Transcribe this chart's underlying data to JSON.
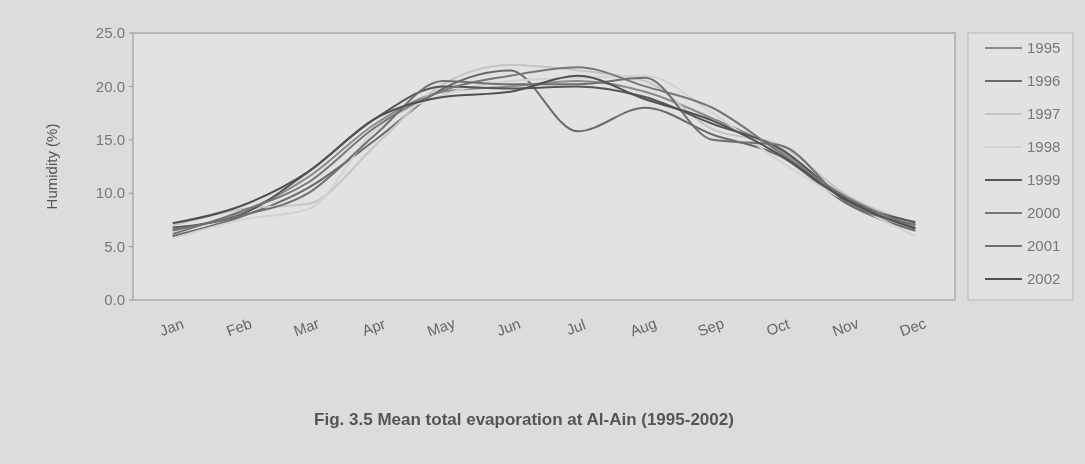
{
  "chart_data": {
    "type": "line",
    "title": "Fig. 3.5 Mean total evaporation at Al-Ain (1995-2002)",
    "ylabel": "Humidity (%)",
    "categories": [
      "Jan",
      "Feb",
      "Mar",
      "Apr",
      "May",
      "Jun",
      "Jul",
      "Aug",
      "Sep",
      "Oct",
      "Nov",
      "Dec"
    ],
    "ylim": [
      0,
      25
    ],
    "yticks": [
      {
        "value": 0,
        "label": "0.0"
      },
      {
        "value": 5,
        "label": "5.0"
      },
      {
        "value": 10,
        "label": "10.0"
      },
      {
        "value": 15,
        "label": "15.0"
      },
      {
        "value": 20,
        "label": "20.0"
      },
      {
        "value": 25,
        "label": "25.0"
      }
    ],
    "grid": false,
    "legend": "right",
    "marker": "none",
    "line_style": "solid",
    "series": [
      {
        "name": "1995",
        "color": "#8a8a8a",
        "values": [
          6.5,
          8.2,
          11.5,
          16.5,
          19.5,
          20.0,
          20.5,
          19.5,
          17.0,
          14.0,
          9.5,
          7.0
        ]
      },
      {
        "name": "1996",
        "color": "#6a6a6a",
        "values": [
          6.0,
          7.8,
          10.5,
          15.0,
          19.8,
          21.5,
          15.8,
          18.0,
          15.5,
          13.5,
          9.0,
          6.5
        ]
      },
      {
        "name": "1997",
        "color": "#c4c4c4",
        "values": [
          7.0,
          8.5,
          9.0,
          14.5,
          20.2,
          22.0,
          21.5,
          20.5,
          16.0,
          14.5,
          9.8,
          7.2
        ]
      },
      {
        "name": "1998",
        "color": "#d2d2d2",
        "values": [
          5.8,
          7.5,
          8.5,
          16.0,
          19.2,
          20.5,
          20.8,
          21.0,
          17.5,
          13.0,
          9.2,
          6.0
        ]
      },
      {
        "name": "1999",
        "color": "#555555",
        "values": [
          6.8,
          8.0,
          12.0,
          17.0,
          20.0,
          19.8,
          20.0,
          19.0,
          16.5,
          14.2,
          9.4,
          7.3
        ]
      },
      {
        "name": "2000",
        "color": "#777777",
        "values": [
          6.2,
          8.3,
          11.0,
          16.2,
          19.6,
          21.0,
          21.8,
          20.0,
          18.0,
          13.8,
          9.6,
          6.8
        ]
      },
      {
        "name": "2001",
        "color": "#707070",
        "values": [
          6.6,
          7.9,
          10.0,
          15.5,
          20.5,
          20.2,
          20.2,
          20.8,
          15.0,
          14.5,
          9.1,
          7.1
        ]
      },
      {
        "name": "2002",
        "color": "#505050",
        "values": [
          7.2,
          8.8,
          12.0,
          17.0,
          19.0,
          19.5,
          21.0,
          18.8,
          16.8,
          13.6,
          9.3,
          6.7
        ]
      }
    ]
  }
}
